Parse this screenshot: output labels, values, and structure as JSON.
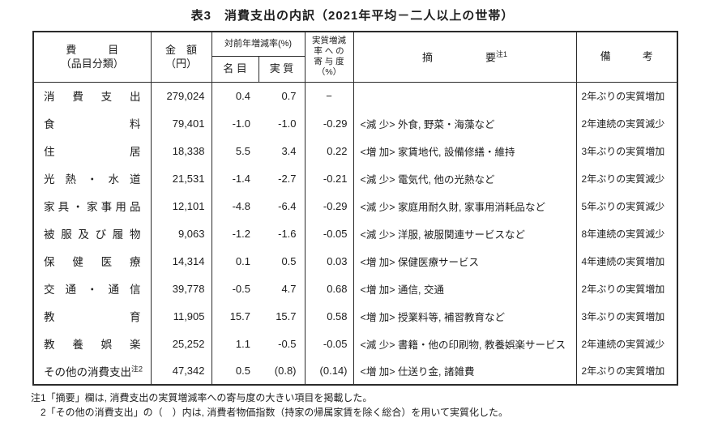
{
  "page": {
    "title": "表3　消費支出の内訳（2021年平均－二人以上の世帯）"
  },
  "table": {
    "header": {
      "item": "費　　　目\n（品目分類）",
      "amount": "金　額\n（円）",
      "yoy": "対前年増減率(%)",
      "nominal": "名 目",
      "real": "実 質",
      "contribution": "実質増減\n率 へ の\n寄 与 度\n（%）",
      "summary": "摘　　　　　要",
      "summary_sup": "注1",
      "remarks": "備　　　考"
    },
    "rows": [
      {
        "item": "消費支出",
        "amount": "279,024",
        "nominal": "0.4",
        "real": "0.7",
        "contribution": "−",
        "summary": "",
        "remarks": "2年ぶりの実質増加"
      },
      {
        "item": "食料",
        "amount": "79,401",
        "nominal": "-1.0",
        "real": "-1.0",
        "contribution": "-0.29",
        "summary": "<減 少> 外食, 野菜・海藻など",
        "remarks": "2年連続の実質減少"
      },
      {
        "item": "住居",
        "amount": "18,338",
        "nominal": "5.5",
        "real": "3.4",
        "contribution": "0.22",
        "summary": "<増 加> 家賃地代, 設備修繕・維持",
        "remarks": "3年ぶりの実質増加"
      },
      {
        "item": "光熱・水道",
        "amount": "21,531",
        "nominal": "-1.4",
        "real": "-2.7",
        "contribution": "-0.21",
        "summary": "<減 少> 電気代, 他の光熱など",
        "remarks": "2年ぶりの実質減少"
      },
      {
        "item": "家具・家事用品",
        "amount": "12,101",
        "nominal": "-4.8",
        "real": "-6.4",
        "contribution": "-0.29",
        "summary": "<減 少> 家庭用耐久財, 家事用消耗品など",
        "remarks": "5年ぶりの実質減少"
      },
      {
        "item": "被服及び履物",
        "amount": "9,063",
        "nominal": "-1.2",
        "real": "-1.6",
        "contribution": "-0.05",
        "summary": "<減 少> 洋服, 被服関連サービスなど",
        "remarks": "8年連続の実質減少"
      },
      {
        "item": "保健医療",
        "amount": "14,314",
        "nominal": "0.1",
        "real": "0.5",
        "contribution": "0.03",
        "summary": "<増 加> 保健医療サービス",
        "remarks": "4年連続の実質増加"
      },
      {
        "item": "交通・通信",
        "amount": "39,778",
        "nominal": "-0.5",
        "real": "4.7",
        "contribution": "0.68",
        "summary": "<増 加> 通信, 交通",
        "remarks": "2年ぶりの実質増加"
      },
      {
        "item": "教育",
        "amount": "11,905",
        "nominal": "15.7",
        "real": "15.7",
        "contribution": "0.58",
        "summary": "<増 加> 授業料等, 補習教育など",
        "remarks": "3年ぶりの実質増加"
      },
      {
        "item": "教養娯楽",
        "amount": "25,252",
        "nominal": "1.1",
        "real": "-0.5",
        "contribution": "-0.05",
        "summary": "<減 少> 書籍・他の印刷物, 教養娯楽サービス",
        "remarks": "2年連続の実質減少"
      },
      {
        "item": "その他の消費支出",
        "item_sup": "注2",
        "amount": "47,342",
        "nominal": "0.5",
        "real": "(0.8)",
        "contribution": "(0.14)",
        "summary": "<増 加> 仕送り金, 諸雑費",
        "remarks": "2年ぶりの実質増加"
      }
    ]
  },
  "footnotes": [
    "注1「摘要」欄は, 消費支出の実質増減率への寄与度の大きい項目を掲載した。",
    "　2「その他の消費支出」の（　）内は, 消費者物価指数（持家の帰属家賃を除く総合）を用いて実質化した。"
  ]
}
